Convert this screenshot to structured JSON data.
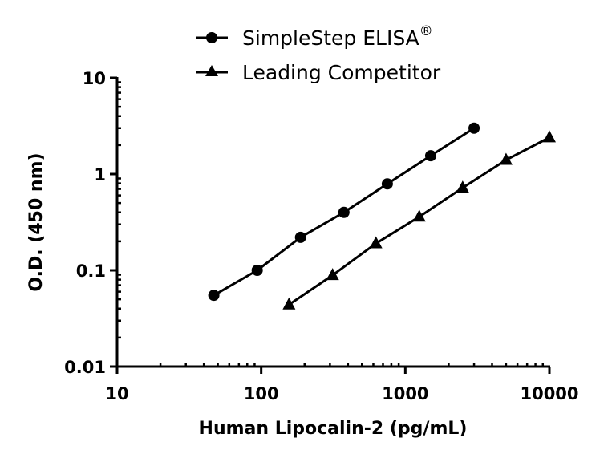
{
  "chart_data": {
    "type": "line",
    "title": "",
    "xlabel": "Human Lipocalin-2 (pg/mL)",
    "ylabel": "O.D. (450 nm)",
    "xscale": "log",
    "yscale": "log",
    "xlim": [
      10,
      10000
    ],
    "ylim": [
      0.01,
      10
    ],
    "xticks": [
      "10",
      "100",
      "1000",
      "10000"
    ],
    "yticks": [
      "10",
      "1",
      "0.1",
      "0.01"
    ],
    "grid": false,
    "legend_position": "top-center",
    "series": [
      {
        "name": "SimpleStep ELISA",
        "name_suffix": "®",
        "marker": "circle",
        "x": [
          46.9,
          93.8,
          187.5,
          375,
          750,
          1500,
          3000
        ],
        "y": [
          0.055,
          0.1,
          0.22,
          0.4,
          0.79,
          1.55,
          3.0
        ]
      },
      {
        "name": "Leading Competitor",
        "name_suffix": "",
        "marker": "triangle",
        "x": [
          156,
          313,
          625,
          1250,
          2500,
          5000,
          10000
        ],
        "y": [
          0.044,
          0.089,
          0.19,
          0.36,
          0.72,
          1.4,
          2.4
        ]
      }
    ]
  },
  "legend": {
    "items": [
      {
        "label": "SimpleStep ELISA",
        "sup": "®"
      },
      {
        "label": "Leading Competitor",
        "sup": ""
      }
    ]
  },
  "axes": {
    "x_title": "Human Lipocalin-2 (pg/mL)",
    "y_title": "O.D. (450 nm)"
  },
  "colors": {
    "line": "#000000",
    "background": "#ffffff"
  }
}
